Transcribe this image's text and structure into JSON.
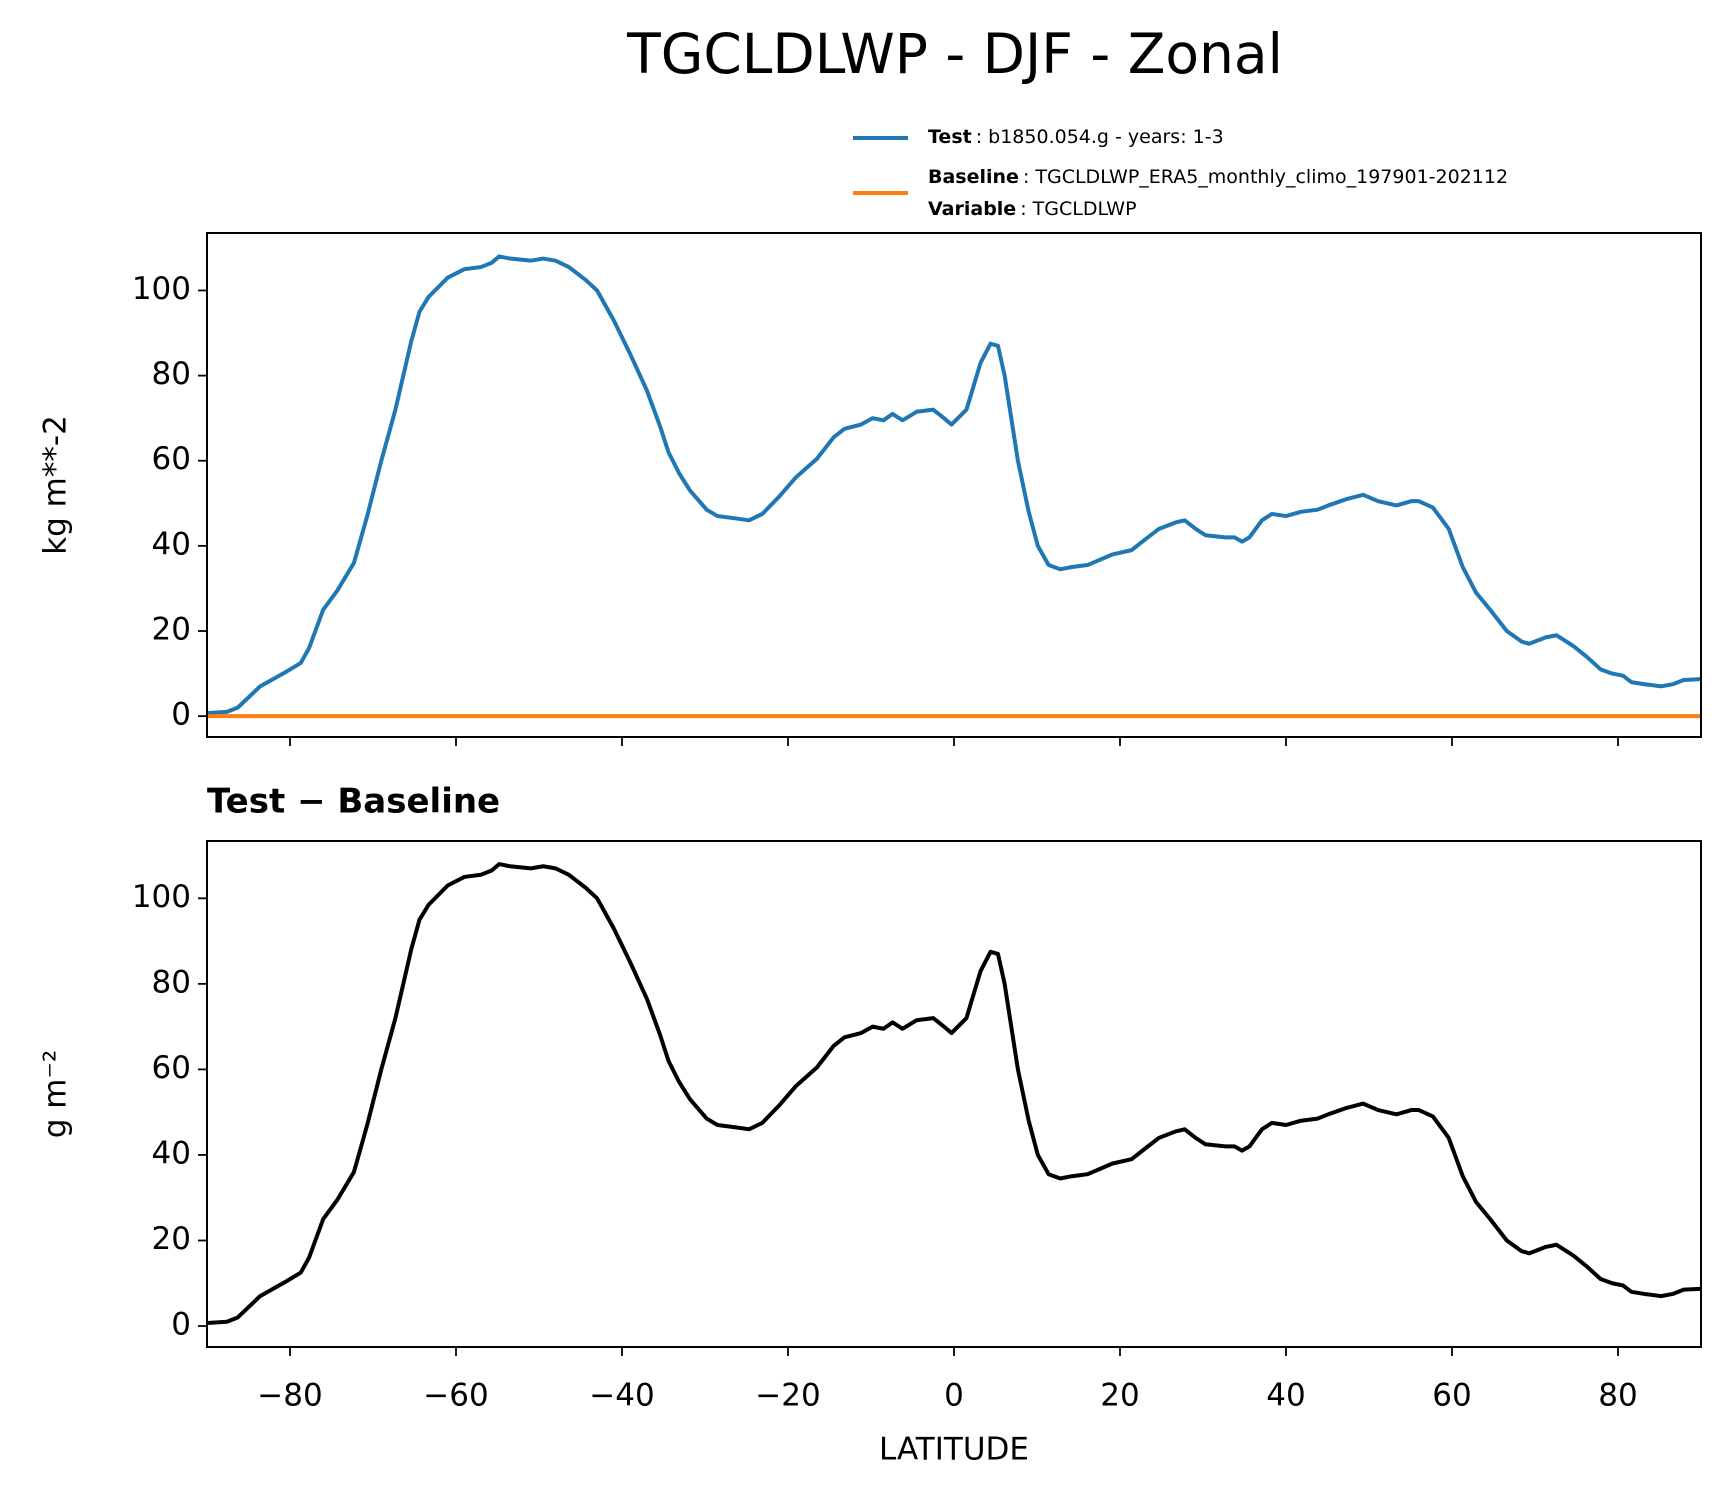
{
  "title": "TGCLDLWP - DJF - Zonal",
  "chart_data": [
    {
      "type": "line",
      "ylabel": "kg m**-2",
      "xlim": [
        -90,
        90
      ],
      "ylim": [
        -4.9,
        113.5
      ],
      "xticks": [
        -80,
        -60,
        -40,
        -20,
        0,
        20,
        40,
        60,
        80
      ],
      "show_xtick_labels": false,
      "yticks": [
        0,
        20,
        40,
        60,
        80,
        100
      ],
      "x": [
        -90,
        -87.6,
        -86.3,
        -83.6,
        -80.4,
        -78.7,
        -77.7,
        -76,
        -74.3,
        -72.3,
        -70.7,
        -69,
        -67.3,
        -65.4,
        -64.4,
        -63.3,
        -61,
        -59,
        -57,
        -55.7,
        -54.8,
        -53.5,
        -51,
        -49.5,
        -48,
        -46.4,
        -44.4,
        -43,
        -41,
        -39,
        -37,
        -35.4,
        -34.4,
        -33.1,
        -31.8,
        -29.8,
        -28.5,
        -26.5,
        -24.7,
        -23.1,
        -21.1,
        -19.1,
        -16.5,
        -14.5,
        -13.2,
        -11.2,
        -9.8,
        -8.5,
        -7.4,
        -6.2,
        -4.5,
        -2.5,
        -1.2,
        -0.3,
        1.5,
        3.2,
        4.4,
        5.3,
        6.1,
        7.7,
        9,
        10.1,
        11.4,
        12.8,
        14.1,
        16.1,
        19.1,
        21.4,
        22.7,
        24.7,
        26.7,
        27.8,
        29.1,
        30.3,
        32.7,
        33.8,
        34.7,
        35.6,
        37.1,
        38.3,
        40,
        41.8,
        43.8,
        45.1,
        47.3,
        49.3,
        51.1,
        53.3,
        55.1,
        56,
        57.7,
        59.6,
        61.3,
        62.9,
        64.6,
        66.6,
        68.4,
        69.3,
        71.3,
        72.6,
        74.6,
        76.2,
        77.9,
        79.3,
        80.6,
        81.6,
        83.2,
        85.2,
        86.6,
        87.9,
        89.9
      ],
      "series": [
        {
          "name": "Test",
          "description": ": b1850.054.g - years: 1-3",
          "color": "#1f77b4",
          "values": [
            0.7,
            1,
            2,
            7,
            10.5,
            12.5,
            16,
            25,
            29.5,
            36,
            47,
            60,
            72,
            88,
            95,
            98.5,
            103,
            105,
            105.5,
            106.5,
            108,
            107.5,
            107,
            107.5,
            107,
            105.5,
            102.5,
            100,
            93,
            85,
            76.5,
            68,
            62,
            57,
            53,
            48.5,
            47,
            46.5,
            46,
            47.5,
            51.5,
            56,
            60.5,
            65.5,
            67.5,
            68.5,
            70,
            69.5,
            71,
            69.5,
            71.5,
            72,
            70,
            68.5,
            72,
            83,
            87.5,
            87,
            80,
            60,
            48,
            40,
            35.5,
            34.5,
            35,
            35.5,
            38,
            39,
            41,
            44,
            45.5,
            46,
            44,
            42.5,
            42,
            42,
            41,
            42,
            46,
            47.5,
            47,
            48,
            48.5,
            49.5,
            51,
            52,
            50.5,
            49.5,
            50.5,
            50.5,
            49,
            44,
            35,
            29,
            25,
            20,
            17.5,
            17,
            18.5,
            19,
            16.5,
            14,
            11,
            10,
            9.5,
            8,
            7.5,
            7,
            7.5,
            8.5,
            8.7
          ]
        },
        {
          "name": "Baseline",
          "description": ": TGCLDLWP_ERA5_monthly_climo_197901-202112",
          "color": "#ff7f0e",
          "values": [
            0,
            0,
            0,
            0,
            0,
            0,
            0,
            0,
            0,
            0,
            0,
            0,
            0,
            0,
            0,
            0,
            0,
            0,
            0,
            0,
            0,
            0,
            0,
            0,
            0,
            0,
            0,
            0,
            0,
            0,
            0,
            0,
            0,
            0,
            0,
            0,
            0,
            0,
            0,
            0,
            0,
            0,
            0,
            0,
            0,
            0,
            0,
            0,
            0,
            0,
            0,
            0,
            0,
            0,
            0,
            0,
            0,
            0,
            0,
            0,
            0,
            0,
            0,
            0,
            0,
            0,
            0,
            0,
            0,
            0,
            0,
            0,
            0,
            0,
            0,
            0,
            0,
            0,
            0,
            0,
            0,
            0,
            0,
            0,
            0,
            0,
            0,
            0,
            0,
            0,
            0,
            0,
            0,
            0,
            0,
            0,
            0,
            0,
            0,
            0,
            0,
            0,
            0,
            0,
            0,
            0,
            0,
            0,
            0,
            0,
            0
          ]
        }
      ],
      "legend_extra": {
        "name": "Variable",
        "description": ": TGCLDLWP"
      }
    },
    {
      "type": "line",
      "title": "Test − Baseline",
      "xlabel": "LATITUDE",
      "ylabel": "g m⁻²",
      "xlim": [
        -90,
        90
      ],
      "ylim": [
        -4.9,
        113.4
      ],
      "xticks": [
        {
          "value": -80,
          "label": "−80"
        },
        {
          "value": -60,
          "label": "−60"
        },
        {
          "value": -40,
          "label": "−40"
        },
        {
          "value": -20,
          "label": "−20"
        },
        0,
        20,
        40,
        60,
        80
      ],
      "show_xtick_labels": true,
      "yticks": [
        0,
        20,
        40,
        60,
        80,
        100
      ],
      "x": [
        -90,
        -87.6,
        -86.3,
        -83.6,
        -80.4,
        -78.7,
        -77.7,
        -76,
        -74.3,
        -72.3,
        -70.7,
        -69,
        -67.3,
        -65.4,
        -64.4,
        -63.3,
        -61,
        -59,
        -57,
        -55.7,
        -54.8,
        -53.5,
        -51,
        -49.5,
        -48,
        -46.4,
        -44.4,
        -43,
        -41,
        -39,
        -37,
        -35.4,
        -34.4,
        -33.1,
        -31.8,
        -29.8,
        -28.5,
        -26.5,
        -24.7,
        -23.1,
        -21.1,
        -19.1,
        -16.5,
        -14.5,
        -13.2,
        -11.2,
        -9.8,
        -8.5,
        -7.4,
        -6.2,
        -4.5,
        -2.5,
        -1.2,
        -0.3,
        1.5,
        3.2,
        4.4,
        5.3,
        6.1,
        7.7,
        9,
        10.1,
        11.4,
        12.8,
        14.1,
        16.1,
        19.1,
        21.4,
        22.7,
        24.7,
        26.7,
        27.8,
        29.1,
        30.3,
        32.7,
        33.8,
        34.7,
        35.6,
        37.1,
        38.3,
        40,
        41.8,
        43.8,
        45.1,
        47.3,
        49.3,
        51.1,
        53.3,
        55.1,
        56,
        57.7,
        59.6,
        61.3,
        62.9,
        64.6,
        66.6,
        68.4,
        69.3,
        71.3,
        72.6,
        74.6,
        76.2,
        77.9,
        79.3,
        80.6,
        81.6,
        83.2,
        85.2,
        86.6,
        87.9,
        89.9
      ],
      "series": [
        {
          "color": "#000000",
          "values": [
            0.7,
            1,
            2,
            7,
            10.5,
            12.5,
            16,
            25,
            29.5,
            36,
            47,
            60,
            72,
            88,
            95,
            98.5,
            103,
            105,
            105.5,
            106.5,
            108,
            107.5,
            107,
            107.5,
            107,
            105.5,
            102.5,
            100,
            93,
            85,
            76.5,
            68,
            62,
            57,
            53,
            48.5,
            47,
            46.5,
            46,
            47.5,
            51.5,
            56,
            60.5,
            65.5,
            67.5,
            68.5,
            70,
            69.5,
            71,
            69.5,
            71.5,
            72,
            70,
            68.5,
            72,
            83,
            87.5,
            87,
            80,
            60,
            48,
            40,
            35.5,
            34.5,
            35,
            35.5,
            38,
            39,
            41,
            44,
            45.5,
            46,
            44,
            42.5,
            42,
            42,
            41,
            42,
            46,
            47.5,
            47,
            48,
            48.5,
            49.5,
            51,
            52,
            50.5,
            49.5,
            50.5,
            50.5,
            49,
            44,
            35,
            29,
            25,
            20,
            17.5,
            17,
            18.5,
            19,
            16.5,
            14,
            11,
            10,
            9.5,
            8,
            7.5,
            7,
            7.5,
            8.5,
            8.7
          ]
        }
      ]
    }
  ]
}
